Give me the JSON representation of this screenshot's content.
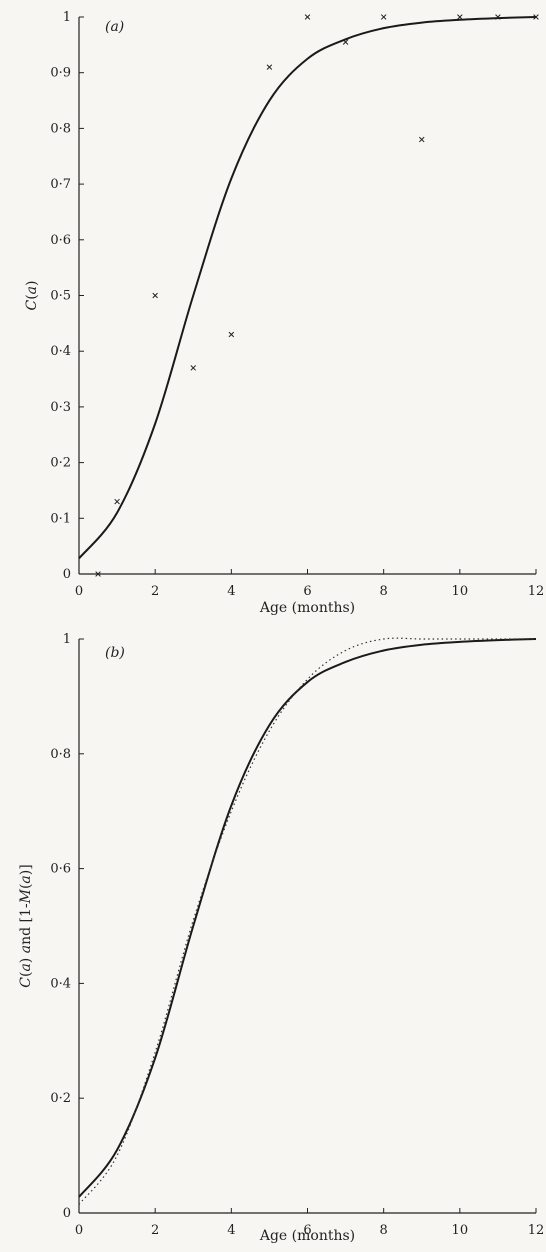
{
  "chart_data": [
    {
      "type": "scatter",
      "panel_label": "(a)",
      "xlabel": "Age (months)",
      "ylabel": "C(a)",
      "xlim": [
        0,
        12
      ],
      "ylim": [
        0,
        1
      ],
      "x_ticks": [
        "0",
        "2",
        "4",
        "6",
        "8",
        "10",
        "12"
      ],
      "y_ticks": [
        "0",
        "0·1",
        "0·2",
        "0·3",
        "0·4",
        "0·5",
        "0·6",
        "0·7",
        "0·8",
        "0·9",
        "1"
      ],
      "series": [
        {
          "kind": "points",
          "marker": "x",
          "x": [
            0.5,
            1,
            2,
            3,
            4,
            5,
            6,
            7,
            8,
            9,
            10,
            11,
            12
          ],
          "y": [
            0.0,
            0.13,
            0.5,
            0.37,
            0.43,
            0.91,
            1.0,
            0.955,
            1.0,
            0.78,
            1.0,
            1.0,
            1.0
          ]
        },
        {
          "kind": "line",
          "style": "solid",
          "x": [
            0,
            1,
            2,
            3,
            4,
            5,
            6,
            7,
            8,
            9,
            10,
            11,
            12
          ],
          "y": [
            0.028,
            0.11,
            0.27,
            0.5,
            0.71,
            0.85,
            0.925,
            0.96,
            0.98,
            0.99,
            0.995,
            0.998,
            1.0
          ]
        }
      ]
    },
    {
      "type": "line",
      "panel_label": "(b)",
      "xlabel": "Age (months)",
      "ylabel": "C(a) and [1-M(a)]",
      "xlim": [
        0,
        12
      ],
      "ylim": [
        0,
        1
      ],
      "x_ticks": [
        "0",
        "2",
        "4",
        "6",
        "8",
        "10",
        "12"
      ],
      "y_ticks": [
        "0",
        "0·2",
        "0·4",
        "0·6",
        "0·8",
        "1"
      ],
      "series": [
        {
          "kind": "line",
          "style": "solid",
          "x": [
            0,
            1,
            2,
            3,
            4,
            5,
            6,
            7,
            8,
            9,
            10,
            11,
            12
          ],
          "y": [
            0.028,
            0.11,
            0.27,
            0.5,
            0.71,
            0.85,
            0.925,
            0.96,
            0.98,
            0.99,
            0.995,
            0.998,
            1.0
          ]
        },
        {
          "kind": "line",
          "style": "dotted",
          "x": [
            0,
            1,
            2,
            3,
            4,
            5,
            6,
            7,
            8,
            9,
            10,
            11,
            12
          ],
          "y": [
            0.015,
            0.1,
            0.28,
            0.51,
            0.7,
            0.84,
            0.93,
            0.98,
            1.0,
            1.0,
            1.0,
            1.0,
            1.0
          ]
        }
      ]
    }
  ]
}
